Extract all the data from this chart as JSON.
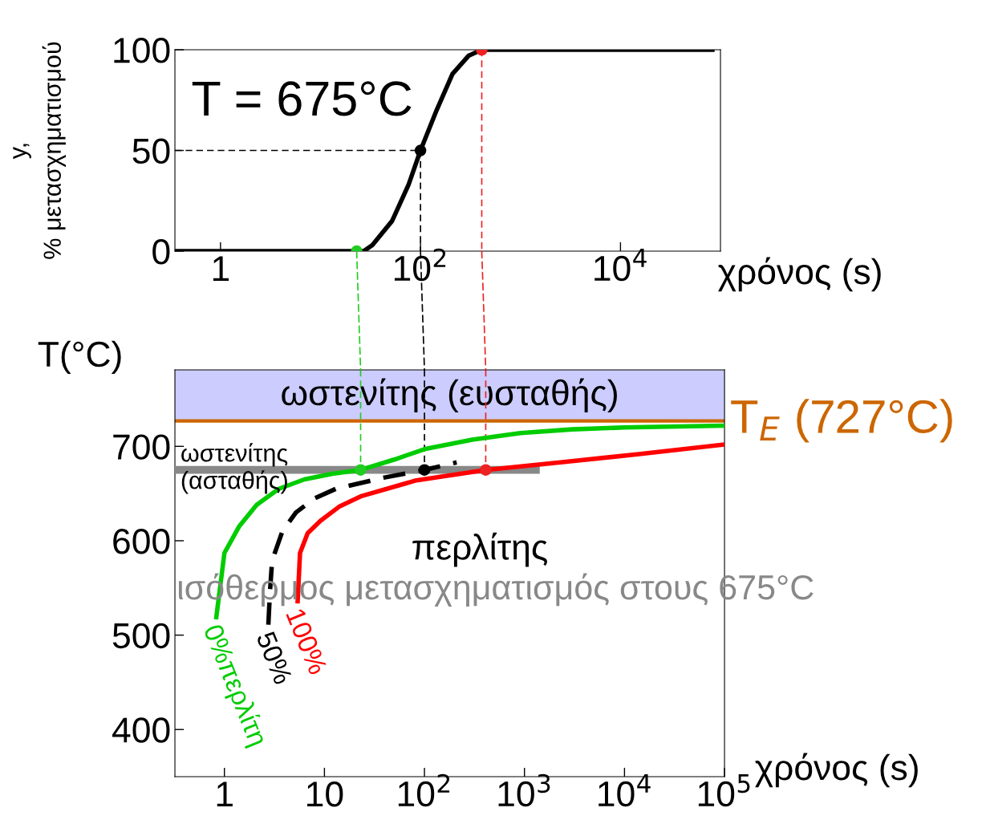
{
  "chart_data": [
    {
      "type": "line",
      "ylabel": "y,\n% μετασχηματισμού",
      "xlabel": "χρόνος (s)",
      "log": "x",
      "grid": false,
      "legend": false,
      "xlim": [
        0.35,
        100000
      ],
      "ylim": [
        0,
        100
      ],
      "xticks": [
        1,
        {
          "value": 100,
          "label": "10$^{2}$"
        },
        {
          "value": 10000,
          "label": "10$^{4}$"
        }
      ],
      "yticks": [
        0,
        50,
        100
      ],
      "annotations": [
        "T = 675°C"
      ],
      "ref_lines": [
        {
          "axis": "y",
          "value": 50,
          "color": "#000000",
          "line_style": "dashed"
        },
        {
          "axis": "x",
          "value": 100,
          "color": "#000000",
          "line_style": "dashed"
        },
        {
          "axis": "x",
          "value": 410,
          "color": "#ee2222",
          "line_style": "dashed"
        }
      ],
      "series": [
        {
          "color": "#000000",
          "x": [
            0.35,
            27,
            33,
            52,
            76,
            100,
            145,
            209,
            302,
            410,
            83000
          ],
          "values": [
            0,
            0,
            3,
            15,
            33,
            50,
            70,
            88,
            97,
            100,
            100
          ]
        },
        {
          "type": "scatter",
          "marker": "circle",
          "colors": [
            "#22cc22",
            "#000000",
            "#ee2222"
          ],
          "x": [
            23,
            100,
            410
          ],
          "values": [
            0,
            50,
            100
          ]
        }
      ]
    },
    {
      "type": "line",
      "ylabel": "T(°C)",
      "xlabel": "χρόνος (s)",
      "log": "x",
      "grid": false,
      "legend": false,
      "xlim": [
        0.32,
        100000
      ],
      "ylim": [
        350,
        781
      ],
      "xticks": [
        1,
        10,
        {
          "value": 100,
          "label": "10$^{2}$"
        },
        {
          "value": 1000,
          "label": "10$^{3}$"
        },
        {
          "value": 10000,
          "label": "10$^{4}$"
        },
        {
          "value": 100000,
          "label": "10$^{5}$"
        }
      ],
      "yticks": [
        400,
        500,
        600,
        700
      ],
      "bands": [
        {
          "axis": "y",
          "from": 727,
          "to": 781,
          "label": "ωστενίτης (ευσταθής)",
          "color": "#ccccff"
        }
      ],
      "ref_lines": [
        {
          "axis": "y",
          "value": 727,
          "label": "T$_{E}$ (727°C)",
          "color": "#cc6600"
        },
        {
          "axis": "x",
          "value": 23,
          "color": "#22cc22",
          "line_style": "dashed"
        },
        {
          "axis": "x",
          "value": 100,
          "color": "#000000",
          "line_style": "dashed"
        },
        {
          "axis": "x",
          "value": 410,
          "color": "#ee2222",
          "line_style": "dashed"
        }
      ],
      "annotations": [
        "ωστενίτης\n(ασταθής)",
        "περλίτης",
        "ισόθερμος μετασχηματισμός στους 675°C"
      ],
      "series": [
        {
          "color": "#888888",
          "x": [
            0.32,
            1300
          ],
          "values": [
            675,
            675
          ]
        },
        {
          "name": "0%περλίτη",
          "color": "#00cc00",
          "x": [
            0.83,
            1,
            1.4,
            2.1,
            3.5,
            6.3,
            12,
            23,
            50,
            100,
            300,
            912,
            3000,
            10000,
            100000
          ],
          "values": [
            519,
            587,
            615,
            638,
            655,
            665,
            671,
            675,
            686,
            697,
            707,
            714,
            718,
            720,
            722
          ]
        },
        {
          "name": "50%",
          "color": "#000000",
          "line_style": "dashed",
          "x": [
            2.75,
            2.85,
            3.0,
            3.8,
            5.2,
            8,
            13,
            40,
            100,
            210
          ],
          "values": [
            511,
            545,
            579,
            610,
            630,
            645,
            655,
            667,
            675,
            683
          ]
        },
        {
          "name": "100%",
          "color": "#ff0000",
          "x": [
            5.4,
            5.7,
            6.8,
            9.1,
            14,
            23,
            83,
            410,
            2290,
            14500,
            100000
          ],
          "values": [
            536,
            587,
            608,
            621,
            636,
            647,
            664,
            675,
            683,
            692,
            702
          ]
        },
        {
          "type": "scatter",
          "marker": "circle",
          "colors": [
            "#22cc22",
            "#000000",
            "#ee2222"
          ],
          "x": [
            23,
            100,
            410
          ],
          "values": [
            675,
            675,
            675
          ]
        }
      ]
    }
  ]
}
